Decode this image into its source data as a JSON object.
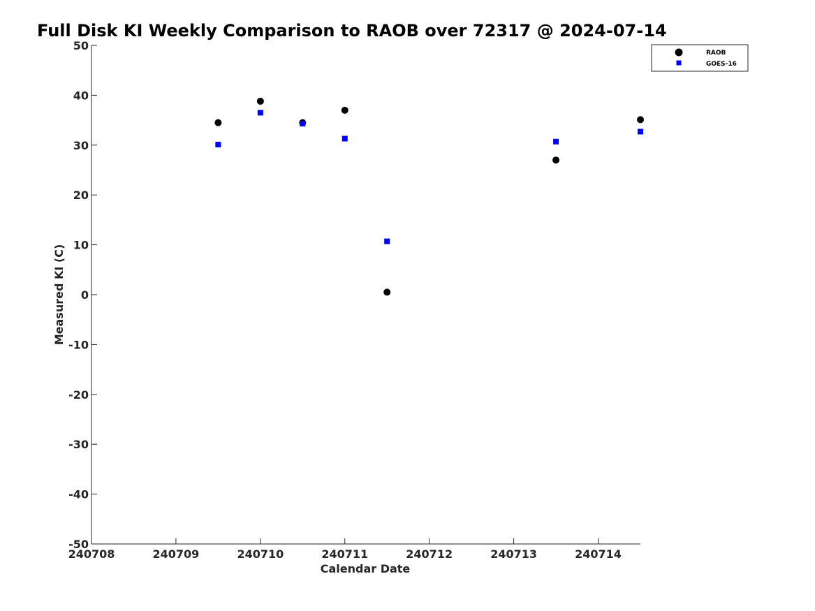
{
  "chart_data": {
    "type": "scatter",
    "title": "Full Disk KI Weekly Comparison to RAOB over 72317 @ 2024-07-14",
    "xlabel": "Calendar Date",
    "ylabel": "Measured KI (C)",
    "xlim": [
      240708,
      240714.5
    ],
    "ylim": [
      -50,
      50
    ],
    "x_ticks": [
      240708,
      240709,
      240710,
      240711,
      240712,
      240713,
      240714
    ],
    "x_tick_labels": [
      "240708",
      "240709",
      "240710",
      "240711",
      "240712",
      "240713",
      "240714"
    ],
    "y_ticks": [
      50,
      40,
      30,
      20,
      10,
      0,
      -10,
      -20,
      -30,
      -40,
      -50
    ],
    "y_tick_labels": [
      "50",
      "40",
      "30",
      "20",
      "10",
      "0",
      "-10",
      "-20",
      "-30",
      "-40",
      "-50"
    ],
    "grid": false,
    "legend_position": "top-right",
    "series": [
      {
        "name": "RAOB",
        "marker": "circle",
        "color": "#000000",
        "points": [
          {
            "x": 240709.5,
            "y": 34.5
          },
          {
            "x": 240710.0,
            "y": 38.8
          },
          {
            "x": 240710.5,
            "y": 34.5
          },
          {
            "x": 240711.0,
            "y": 37.0
          },
          {
            "x": 240711.5,
            "y": 0.5
          },
          {
            "x": 240713.5,
            "y": 27.0
          },
          {
            "x": 240714.5,
            "y": 35.1
          }
        ]
      },
      {
        "name": "GOES-16",
        "marker": "square",
        "color": "#0000ff",
        "points": [
          {
            "x": 240709.5,
            "y": 30.1
          },
          {
            "x": 240710.0,
            "y": 36.5
          },
          {
            "x": 240710.5,
            "y": 34.3
          },
          {
            "x": 240711.0,
            "y": 31.3
          },
          {
            "x": 240711.5,
            "y": 10.7
          },
          {
            "x": 240713.5,
            "y": 30.7
          },
          {
            "x": 240714.5,
            "y": 32.7
          }
        ]
      }
    ]
  }
}
